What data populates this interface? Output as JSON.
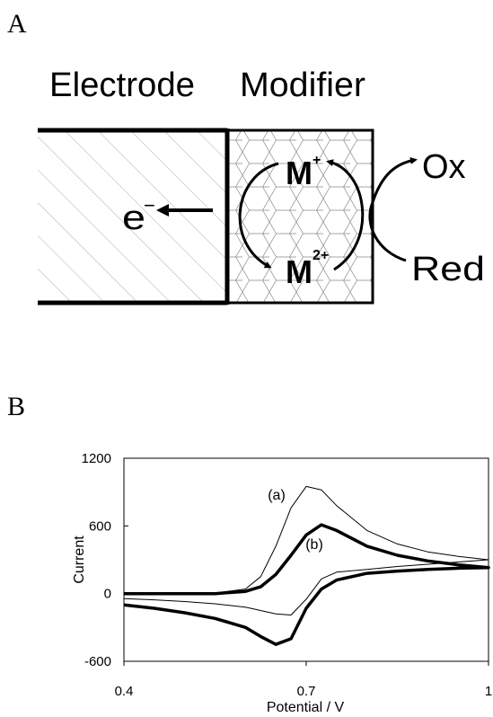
{
  "panel_a": {
    "label": "A",
    "electrode": "Electrode",
    "modifier": "Modifier",
    "electron": "e",
    "electron_charge": "−",
    "ion_top": "M",
    "ion_top_charge": "+",
    "ion_bottom": "M",
    "ion_bottom_charge": "2+",
    "oxidized": "Ox",
    "reduced": "Red"
  },
  "chart_data": {
    "type": "line",
    "panel_label": "B",
    "x_label": "Potential / V",
    "y_label": "Current",
    "x": [
      0.4,
      0.45,
      0.5,
      0.55,
      0.6,
      0.625,
      0.65,
      0.675,
      0.7,
      0.725,
      0.75,
      0.8,
      0.85,
      0.9,
      0.95,
      1.0,
      0.95,
      0.9,
      0.85,
      0.8,
      0.75,
      0.725,
      0.7,
      0.675,
      0.65,
      0.625,
      0.6,
      0.55,
      0.5,
      0.45,
      0.4
    ],
    "series": [
      {
        "name": "(a)",
        "color": "#000000",
        "width": 1,
        "values": [
          0,
          0,
          0,
          5,
          40,
          150,
          420,
          760,
          950,
          920,
          780,
          560,
          440,
          370,
          330,
          300,
          280,
          260,
          240,
          215,
          190,
          130,
          -50,
          -190,
          -180,
          -150,
          -120,
          -90,
          -70,
          -55,
          -45
        ]
      },
      {
        "name": "(b)",
        "color": "#000000",
        "width": 3.5,
        "values": [
          0,
          0,
          0,
          0,
          20,
          60,
          170,
          340,
          520,
          610,
          560,
          420,
          340,
          290,
          255,
          230,
          225,
          215,
          200,
          180,
          120,
          40,
          -130,
          -400,
          -450,
          -380,
          -300,
          -220,
          -170,
          -130,
          -100
        ]
      }
    ],
    "xlim": [
      0.4,
      1
    ],
    "xticks": [
      0.4,
      0.7,
      1
    ],
    "ylim": [
      -600,
      1200
    ],
    "yticks": [
      -600,
      0,
      600,
      1200
    ],
    "grid": false
  }
}
